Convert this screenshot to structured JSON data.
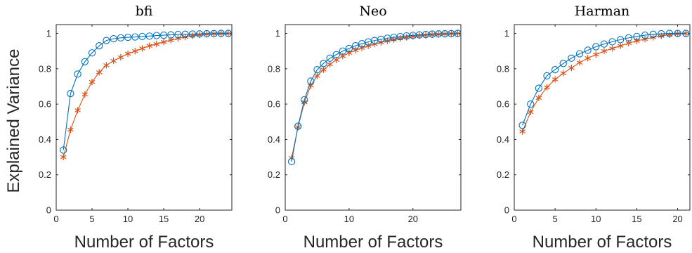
{
  "figure": {
    "ylabel": "Explained Variance",
    "colors": {
      "circle_series": "#0072BD",
      "star_series": "#D95319",
      "axis": "#262626"
    }
  },
  "chart_data": [
    {
      "type": "line",
      "title": "bfi",
      "xlabel": "Number of Factors",
      "ylabel": "Explained Variance",
      "xlim": [
        0,
        24.5
      ],
      "ylim": [
        0,
        1.05
      ],
      "xticks": [
        0,
        5,
        10,
        15,
        20
      ],
      "yticks": [
        0,
        0.2,
        0.4,
        0.6,
        0.8,
        1
      ],
      "grid": false,
      "x": [
        1,
        2,
        3,
        4,
        5,
        6,
        7,
        8,
        9,
        10,
        11,
        12,
        13,
        14,
        15,
        16,
        17,
        18,
        19,
        20,
        21,
        22,
        23,
        24
      ],
      "series": [
        {
          "marker": "circle",
          "color": "#0072BD",
          "values": [
            0.34,
            0.66,
            0.77,
            0.84,
            0.89,
            0.93,
            0.96,
            0.97,
            0.975,
            0.978,
            0.98,
            0.983,
            0.985,
            0.988,
            0.99,
            0.992,
            0.994,
            0.995,
            0.996,
            0.997,
            0.998,
            0.999,
            1.0,
            1.0
          ]
        },
        {
          "marker": "star",
          "color": "#D95319",
          "values": [
            0.3,
            0.455,
            0.565,
            0.655,
            0.725,
            0.78,
            0.82,
            0.845,
            0.865,
            0.885,
            0.9,
            0.915,
            0.93,
            0.94,
            0.952,
            0.962,
            0.972,
            0.98,
            0.987,
            0.992,
            0.996,
            0.998,
            0.999,
            1.0
          ]
        }
      ]
    },
    {
      "type": "line",
      "title": "Neo",
      "xlabel": "Number of Factors",
      "ylabel": "",
      "xlim": [
        0,
        27.5
      ],
      "ylim": [
        0,
        1.05
      ],
      "xticks": [
        0,
        10,
        20
      ],
      "yticks": [
        0,
        0.2,
        0.4,
        0.6,
        0.8,
        1
      ],
      "grid": false,
      "x": [
        1,
        2,
        3,
        4,
        5,
        6,
        7,
        8,
        9,
        10,
        11,
        12,
        13,
        14,
        15,
        16,
        17,
        18,
        19,
        20,
        21,
        22,
        23,
        24,
        25,
        26,
        27
      ],
      "series": [
        {
          "marker": "circle",
          "color": "#0072BD",
          "values": [
            0.275,
            0.475,
            0.625,
            0.73,
            0.795,
            0.83,
            0.86,
            0.88,
            0.9,
            0.915,
            0.93,
            0.942,
            0.952,
            0.96,
            0.967,
            0.973,
            0.978,
            0.982,
            0.986,
            0.989,
            0.992,
            0.994,
            0.996,
            0.997,
            0.998,
            0.999,
            1.0
          ]
        },
        {
          "marker": "star",
          "color": "#D95319",
          "values": [
            0.295,
            0.47,
            0.61,
            0.705,
            0.76,
            0.795,
            0.825,
            0.85,
            0.872,
            0.89,
            0.905,
            0.918,
            0.93,
            0.94,
            0.95,
            0.958,
            0.966,
            0.972,
            0.978,
            0.983,
            0.987,
            0.99,
            0.993,
            0.995,
            0.997,
            0.999,
            1.0
          ]
        }
      ]
    },
    {
      "type": "line",
      "title": "Harman",
      "xlabel": "Number of Factors",
      "ylabel": "",
      "xlim": [
        0,
        21.5
      ],
      "ylim": [
        0,
        1.05
      ],
      "xticks": [
        0,
        5,
        10,
        15,
        20
      ],
      "yticks": [
        0,
        0.2,
        0.4,
        0.6,
        0.8,
        1
      ],
      "grid": false,
      "x": [
        1,
        2,
        3,
        4,
        5,
        6,
        7,
        8,
        9,
        10,
        11,
        12,
        13,
        14,
        15,
        16,
        17,
        18,
        19,
        20,
        21
      ],
      "series": [
        {
          "marker": "circle",
          "color": "#0072BD",
          "values": [
            0.48,
            0.6,
            0.69,
            0.76,
            0.795,
            0.83,
            0.86,
            0.885,
            0.905,
            0.925,
            0.94,
            0.953,
            0.965,
            0.975,
            0.983,
            0.99,
            0.995,
            0.998,
            1.0,
            1.0,
            1.0
          ]
        },
        {
          "marker": "star",
          "color": "#D95319",
          "values": [
            0.445,
            0.555,
            0.635,
            0.695,
            0.74,
            0.775,
            0.805,
            0.835,
            0.86,
            0.88,
            0.9,
            0.915,
            0.93,
            0.945,
            0.958,
            0.968,
            0.978,
            0.986,
            0.993,
            0.998,
            1.0
          ]
        }
      ]
    }
  ]
}
